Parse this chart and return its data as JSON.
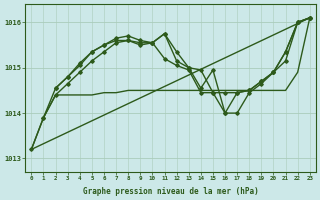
{
  "background_color": "#cce8e8",
  "grid_color": "#aaccbb",
  "line_color": "#2d5a1b",
  "xlabel": "Graphe pression niveau de la mer (hPa)",
  "xlim": [
    -0.5,
    23.5
  ],
  "ylim": [
    1012.7,
    1016.4
  ],
  "yticks": [
    1013,
    1014,
    1015,
    1016
  ],
  "xticks": [
    0,
    1,
    2,
    3,
    4,
    5,
    6,
    7,
    8,
    9,
    10,
    11,
    12,
    13,
    14,
    15,
    16,
    17,
    18,
    19,
    20,
    21,
    22,
    23
  ],
  "series": [
    {
      "x": [
        0,
        23
      ],
      "y": [
        1013.2,
        1016.1
      ],
      "marker": false,
      "linewidth": 1.0
    },
    {
      "x": [
        0,
        1,
        2,
        3,
        4,
        5,
        6,
        7,
        8,
        9,
        10,
        11,
        12,
        13,
        14,
        15,
        16,
        17,
        18,
        19,
        20,
        21,
        22,
        23
      ],
      "y": [
        1013.2,
        1013.9,
        1014.4,
        1014.4,
        1014.4,
        1014.4,
        1014.45,
        1014.45,
        1014.5,
        1014.5,
        1014.5,
        1014.5,
        1014.5,
        1014.5,
        1014.5,
        1014.5,
        1014.5,
        1014.5,
        1014.5,
        1014.5,
        1014.5,
        1014.5,
        1014.9,
        1016.1
      ],
      "marker": false,
      "linewidth": 1.0
    },
    {
      "x": [
        0,
        1,
        2,
        3,
        4,
        5,
        6,
        7,
        8,
        9,
        10,
        11,
        12,
        13,
        14,
        15,
        16,
        17,
        18,
        19,
        20,
        21,
        22,
        23
      ],
      "y": [
        1013.2,
        1013.9,
        1014.4,
        1014.65,
        1014.9,
        1015.15,
        1015.35,
        1015.55,
        1015.6,
        1015.5,
        1015.55,
        1015.2,
        1015.05,
        1014.95,
        1014.45,
        1014.45,
        1014.45,
        1014.45,
        1014.5,
        1014.7,
        1014.9,
        1015.15,
        1016.0,
        1016.1
      ],
      "marker": true,
      "linewidth": 1.0
    },
    {
      "x": [
        1,
        2,
        3,
        4,
        5,
        6,
        7,
        8,
        9,
        10,
        11,
        12,
        13,
        14,
        15,
        16,
        17,
        18,
        19,
        20,
        21,
        22,
        23
      ],
      "y": [
        1013.9,
        1014.55,
        1014.8,
        1015.1,
        1015.35,
        1015.5,
        1015.65,
        1015.7,
        1015.6,
        1015.55,
        1015.75,
        1015.35,
        1015.0,
        1014.95,
        1014.45,
        1014.0,
        1014.0,
        1014.45,
        1014.65,
        1014.9,
        1015.35,
        1016.0,
        1016.1
      ],
      "marker": true,
      "linewidth": 1.0
    },
    {
      "x": [
        2,
        3,
        4,
        5,
        6,
        7,
        8,
        9,
        10,
        11,
        12,
        13,
        14,
        15,
        16,
        17,
        18,
        19,
        20,
        21,
        22,
        23
      ],
      "y": [
        1014.55,
        1014.8,
        1015.05,
        1015.35,
        1015.5,
        1015.6,
        1015.6,
        1015.55,
        1015.55,
        1015.75,
        1015.15,
        1015.0,
        1014.55,
        1014.95,
        1014.0,
        1014.45,
        1014.5,
        1014.7,
        1014.9,
        1015.35,
        1016.0,
        1016.1
      ],
      "marker": true,
      "linewidth": 1.0
    }
  ]
}
